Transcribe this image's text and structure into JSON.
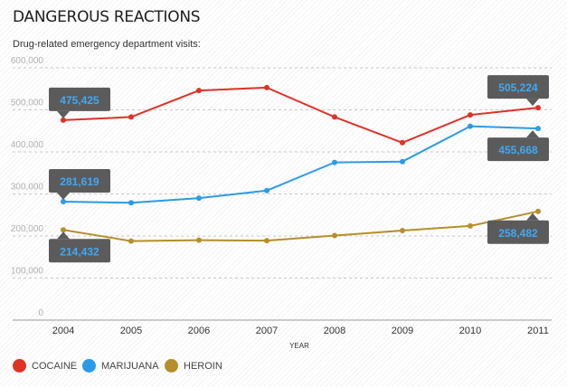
{
  "title": "DANGEROUS REACTIONS",
  "subtitle": "Drug-related emergency department visits:",
  "chart_data": {
    "type": "line",
    "x": [
      "2004",
      "2005",
      "2006",
      "2007",
      "2008",
      "2009",
      "2010",
      "2011"
    ],
    "xlabel": "YEAR",
    "ylabel": "",
    "ylim": [
      0,
      600000
    ],
    "yticks": [
      "0",
      "100,000",
      "200,000",
      "300,000",
      "400,000",
      "500,000",
      "600,000"
    ],
    "grid": true,
    "legend_position": "bottom-left",
    "series": [
      {
        "name": "COCAINE",
        "color": "#e03127",
        "values": [
          475425,
          483000,
          546000,
          553000,
          483000,
          422000,
          488000,
          505224
        ],
        "callouts": [
          {
            "index": 0,
            "label": "475,425",
            "side": "above"
          },
          {
            "index": 7,
            "label": "505,224",
            "side": "above"
          }
        ]
      },
      {
        "name": "MARIJUANA",
        "color": "#2b9be8",
        "values": [
          281619,
          279000,
          290000,
          308000,
          375000,
          377000,
          461000,
          455668
        ],
        "callouts": [
          {
            "index": 0,
            "label": "281,619",
            "side": "above"
          },
          {
            "index": 7,
            "label": "455,668",
            "side": "below"
          }
        ]
      },
      {
        "name": "HEROIN",
        "color": "#b58f2a",
        "values": [
          214432,
          188000,
          190000,
          189000,
          201000,
          213000,
          224000,
          258482
        ],
        "callouts": [
          {
            "index": 0,
            "label": "214,432",
            "side": "below"
          },
          {
            "index": 7,
            "label": "258,482",
            "side": "below"
          }
        ]
      }
    ]
  }
}
